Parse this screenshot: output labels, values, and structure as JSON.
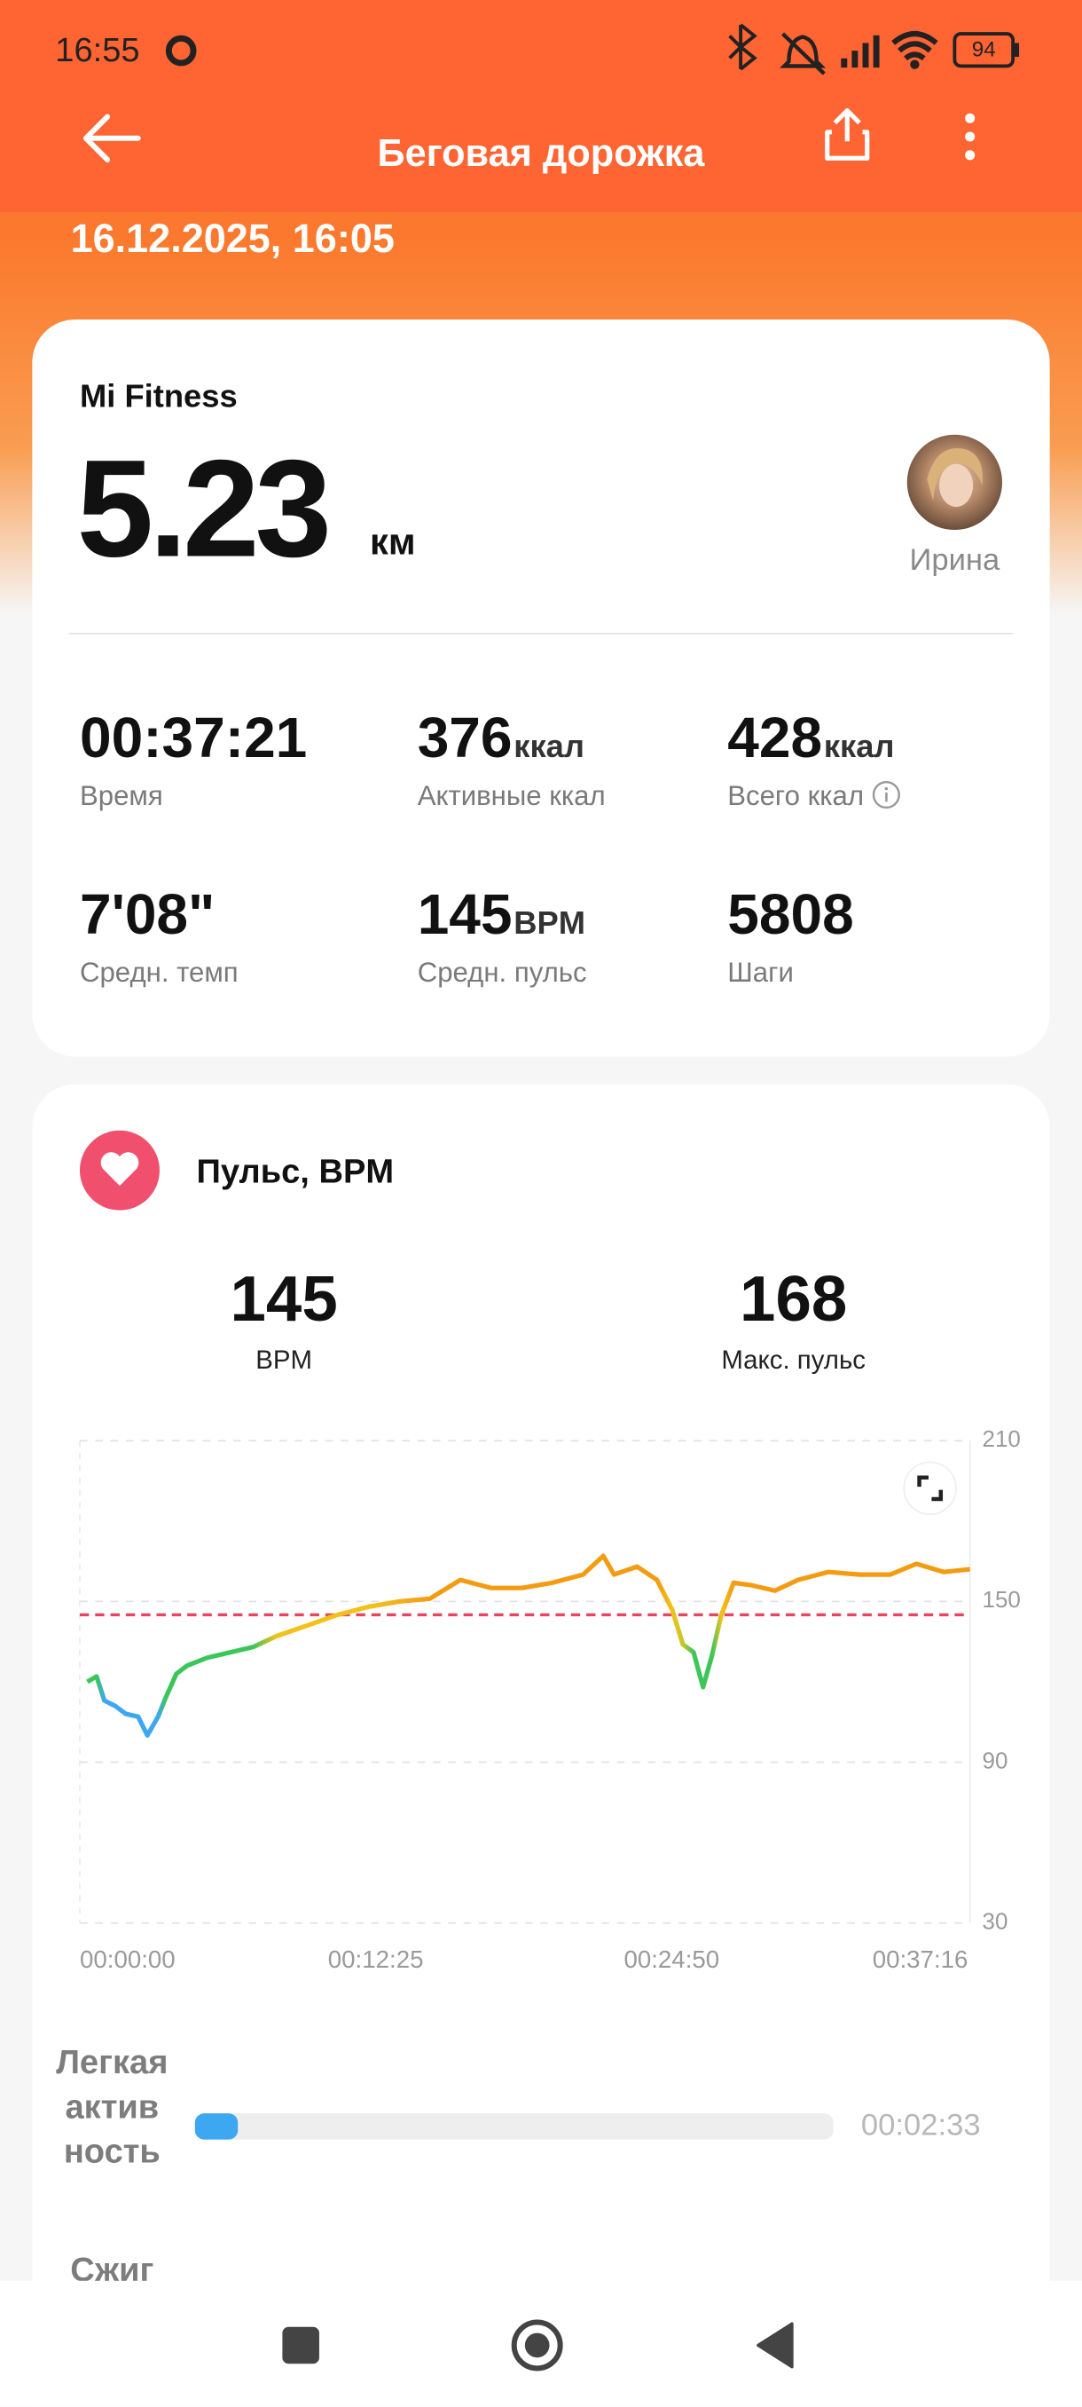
{
  "status_bar": {
    "time": "16:55",
    "battery": "94"
  },
  "header": {
    "title": "Беговая дорожка",
    "date": "16.12.2025, 16:05"
  },
  "summary": {
    "source": "Mi Fitness",
    "distance": "5.23",
    "distance_unit": "км",
    "user": "Ирина",
    "stats": [
      {
        "value": "00:37:21",
        "label": "Время"
      },
      {
        "value": "376",
        "unit": "ккал",
        "label": "Активные ккал"
      },
      {
        "value": "428",
        "unit": "ккал",
        "label": "Всего ккал"
      },
      {
        "value": "7'08\"",
        "label": "Средн. темп"
      },
      {
        "value": "145",
        "unit": "BPM",
        "label": "Средн. пульс"
      },
      {
        "value": "5808",
        "label": "Шаги"
      }
    ]
  },
  "heart": {
    "title": "Пульс, BPM",
    "avg": {
      "value": 145,
      "label": "BPM"
    },
    "max": {
      "value": 168,
      "label": "Макс. пульс"
    },
    "chart_data": {
      "type": "line",
      "x": [
        19,
        42,
        62,
        89,
        116,
        147,
        170,
        197,
        216,
        243,
        270,
        321,
        379,
        437,
        495,
        572,
        649,
        726,
        804,
        881,
        958,
        1035,
        1113,
        1190,
        1267,
        1318,
        1345,
        1403,
        1453,
        1491,
        1518,
        1545,
        1569,
        1592,
        1615,
        1646,
        1692,
        1750,
        1808,
        1885,
        1963,
        2040,
        2106,
        2175,
        2241
      ],
      "values": [
        120,
        122,
        113,
        111,
        108,
        107,
        100,
        107,
        114,
        123,
        126,
        129,
        131,
        133,
        137,
        141,
        145,
        148,
        150,
        151,
        158,
        155,
        155,
        157,
        160,
        167,
        160,
        163,
        158,
        147,
        134,
        131,
        118,
        130,
        145,
        157,
        156,
        154,
        158,
        161,
        160,
        160,
        164,
        161,
        162
      ],
      "colors": [
        "#3cc65a",
        "#3cc65a",
        "#3ea7f2",
        "#3ea7f2",
        "#3ea7f2",
        "#3ea7f2",
        "#3ea7f2",
        "#3ea7f2",
        "#3cc65a",
        "#3cc65a",
        "#3cc65a",
        "#3cc65a",
        "#3cc65a",
        "#3cc65a",
        "#f2c21b",
        "#f2c21b",
        "#f2c21b",
        "#f2c21b",
        "#f2b01b",
        "#f39c12",
        "#f39c12",
        "#f39c12",
        "#f39c12",
        "#f39c12",
        "#f39c12",
        "#f39c12",
        "#f39c12",
        "#f39c12",
        "#f39c12",
        "#f2c21b",
        "#c8c62a",
        "#3cc65a",
        "#3cc65a",
        "#3cc65a",
        "#f2c21b",
        "#f39c12",
        "#f39c12",
        "#f39c12",
        "#f39c12",
        "#f39c12",
        "#f39c12",
        "#f39c12",
        "#f39c12",
        "#f39c12",
        "#f39c12"
      ],
      "avg_color": "#e8445f",
      "xlim": [
        0,
        2241
      ],
      "ylim": [
        30,
        210
      ],
      "xticks": [
        {
          "value": 0,
          "label": "00:00:00"
        },
        {
          "value": 745,
          "label": "00:12:25"
        },
        {
          "value": 1490,
          "label": "00:24:50"
        },
        {
          "value": 2236,
          "label": "00:37:16"
        }
      ],
      "yticks": [
        210,
        150,
        90,
        30
      ]
    },
    "zones": [
      {
        "name": "Легкая активность",
        "duration": "00:02:33",
        "color": "#3ea7f2"
      },
      {
        "name": "Сжиг"
      }
    ]
  }
}
